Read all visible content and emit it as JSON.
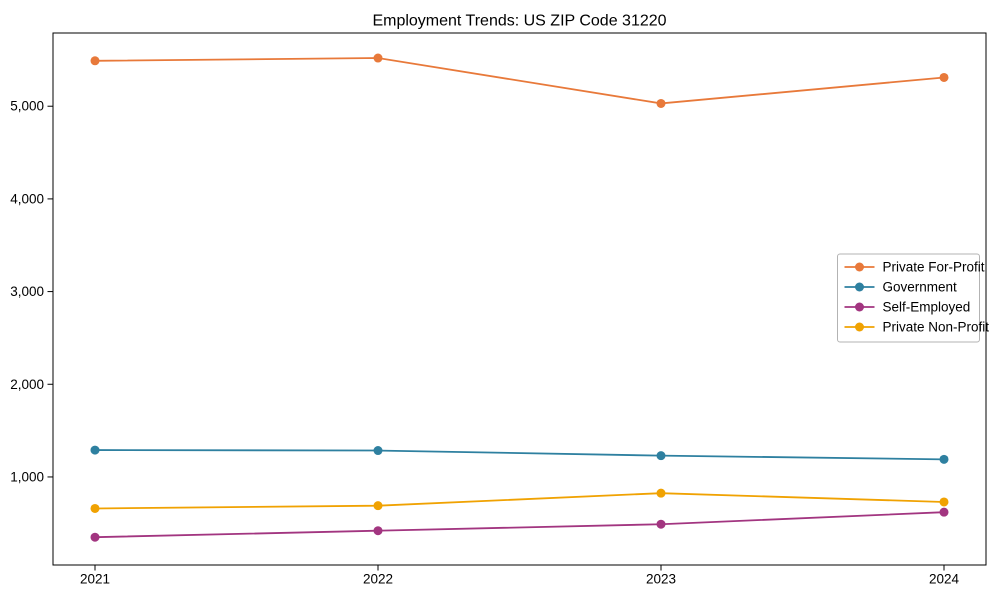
{
  "chart_data": {
    "type": "line",
    "title": "Employment Trends: US ZIP Code 31220",
    "xlabel": "",
    "ylabel": "",
    "categories": [
      "2021",
      "2022",
      "2023",
      "2024"
    ],
    "series": [
      {
        "name": "Private For-Profit",
        "color": "#e8793a",
        "values": [
          5490,
          5520,
          5030,
          5310
        ]
      },
      {
        "name": "Government",
        "color": "#2e80a0",
        "values": [
          1290,
          1285,
          1230,
          1190
        ]
      },
      {
        "name": "Self-Employed",
        "color": "#a23580",
        "values": [
          350,
          420,
          490,
          620
        ]
      },
      {
        "name": "Private Non-Profit",
        "color": "#f0a202",
        "values": [
          660,
          690,
          825,
          730
        ]
      }
    ],
    "ylim": [
      50,
      5790
    ],
    "yticks": [
      1000,
      2000,
      3000,
      4000,
      5000
    ],
    "ytick_labels": [
      "1,000",
      "2,000",
      "3,000",
      "4,000",
      "5,000"
    ],
    "grid": false,
    "legend_position": "center right",
    "marker": "circle",
    "colors": {
      "axis": "#000000",
      "legend_border": "#b3b3b3",
      "background": "#ffffff"
    }
  }
}
